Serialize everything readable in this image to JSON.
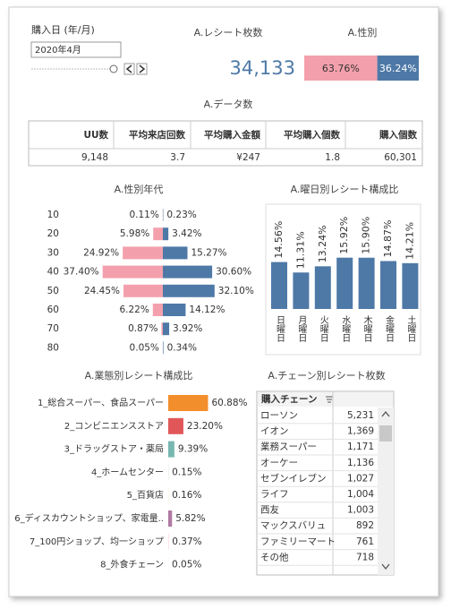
{
  "filter": {
    "label": "購入日 (年/月)",
    "value": "2020年4月"
  },
  "receipts": {
    "title": "A.レシート枚数",
    "value": "34,133"
  },
  "data_table": {
    "title": "A.データ数",
    "headers": [
      "UU数",
      "平均来店回数",
      "平均購入金額",
      "平均購入個数",
      "購入個数"
    ],
    "rows": [
      [
        "9,148",
        "3.7",
        "¥247",
        "1.8",
        "60,301"
      ]
    ]
  },
  "chain_table": {
    "title": "A.チェーン別レシート枚数",
    "header": "購入チェーン",
    "rows": [
      [
        "ローソン",
        "5,231"
      ],
      [
        "イオン",
        "1,369"
      ],
      [
        "業務スーパー",
        "1,171"
      ],
      [
        "オーケー",
        "1,136"
      ],
      [
        "セブンイレブン",
        "1,027"
      ],
      [
        "ライフ",
        "1,004"
      ],
      [
        "西友",
        "1,003"
      ],
      [
        "マックスバリュ",
        "892"
      ],
      [
        "ファミリーマート",
        "761"
      ],
      [
        "その他",
        "718"
      ]
    ]
  },
  "chart_data": [
    {
      "type": "stacked-bar",
      "title": "A.性別",
      "values": [
        63.76,
        36.24
      ],
      "value_labels": [
        "63.76%",
        "36.24%"
      ],
      "colors": [
        "#f4a0ac",
        "#4e79a7"
      ]
    },
    {
      "type": "diverging-bar",
      "title": "A.性別年代",
      "categories": [
        "10",
        "20",
        "30",
        "40",
        "50",
        "60",
        "70",
        "80"
      ],
      "series": [
        {
          "color": "#f4a0ac",
          "values": [
            0.11,
            5.98,
            24.92,
            37.4,
            24.45,
            6.22,
            0.87,
            0.05
          ],
          "value_labels": [
            "0.11%",
            "5.98%",
            "24.92%",
            "37.40%",
            "24.45%",
            "6.22%",
            "0.87%",
            "0.05%"
          ]
        },
        {
          "color": "#4e79a7",
          "values": [
            0.23,
            3.42,
            15.27,
            30.6,
            32.1,
            14.12,
            3.92,
            0.34
          ],
          "value_labels": [
            "0.23%",
            "3.42%",
            "15.27%",
            "30.60%",
            "32.10%",
            "14.12%",
            "3.92%",
            "0.34%"
          ]
        }
      ]
    },
    {
      "type": "bar",
      "title": "A.曜日別レシート構成比",
      "categories": [
        "日曜日",
        "月曜日",
        "火曜日",
        "水曜日",
        "木曜日",
        "金曜日",
        "土曜日"
      ],
      "values": [
        14.56,
        11.31,
        13.24,
        15.92,
        15.9,
        14.87,
        14.21
      ],
      "value_labels": [
        "14.56%",
        "11.31%",
        "13.24%",
        "15.92%",
        "15.90%",
        "14.87%",
        "14.21%"
      ],
      "color": "#4e79a7"
    },
    {
      "type": "horizontal-bar",
      "title": "A.業態別レシート構成比",
      "categories": [
        "1_総合スーパー、食品スーパー",
        "2_コンビニエンスストア",
        "3_ドラッグストア・薬局",
        "4_ホームセンター",
        "5_百貨店",
        "6_ディスカウントショップ、家電量..",
        "7_100円ショップ、均一ショップ",
        "8_外食チェーン"
      ],
      "values": [
        60.88,
        23.2,
        9.39,
        0.15,
        0.16,
        5.82,
        0.37,
        0.05
      ],
      "value_labels": [
        "60.88%",
        "23.20%",
        "9.39%",
        "0.15%",
        "0.16%",
        "5.82%",
        "0.37%",
        "0.05%"
      ],
      "colors": [
        "#f28e2b",
        "#e15759",
        "#76b7b2",
        "#59a14f",
        "#edc948",
        "#b07aa1",
        "#ff9da7",
        "#9c755f"
      ]
    }
  ]
}
